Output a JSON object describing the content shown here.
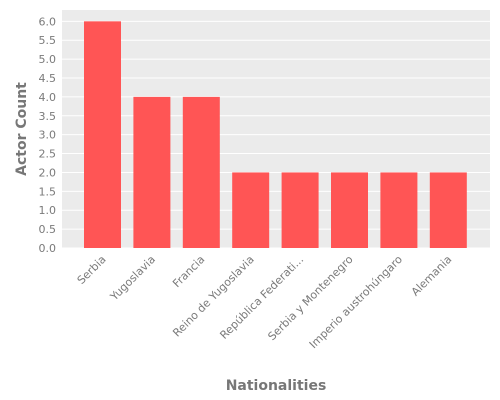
{
  "chart_data": {
    "type": "bar",
    "categories": [
      "Serbia",
      "Yugoslavia",
      "Francia",
      "Reino de Yugoslavia",
      "República Federati...",
      "Serbia y Montenegro",
      "Imperio austrohúngaro",
      "Alemania"
    ],
    "values": [
      6,
      4,
      4,
      2,
      2,
      2,
      2,
      2
    ],
    "xlabel": "Nationalities",
    "ylabel": "Actor Count",
    "ylim": [
      0,
      6.3
    ],
    "yticks": [
      "0.0",
      "0.5",
      "1.0",
      "1.5",
      "2.0",
      "2.5",
      "3.0",
      "3.5",
      "4.0",
      "4.5",
      "5.0",
      "5.5",
      "6.0"
    ],
    "grid": true,
    "colors": {
      "bar": "#ff5555",
      "plot_background": "#ebebeb",
      "grid": "#ffffff"
    }
  }
}
